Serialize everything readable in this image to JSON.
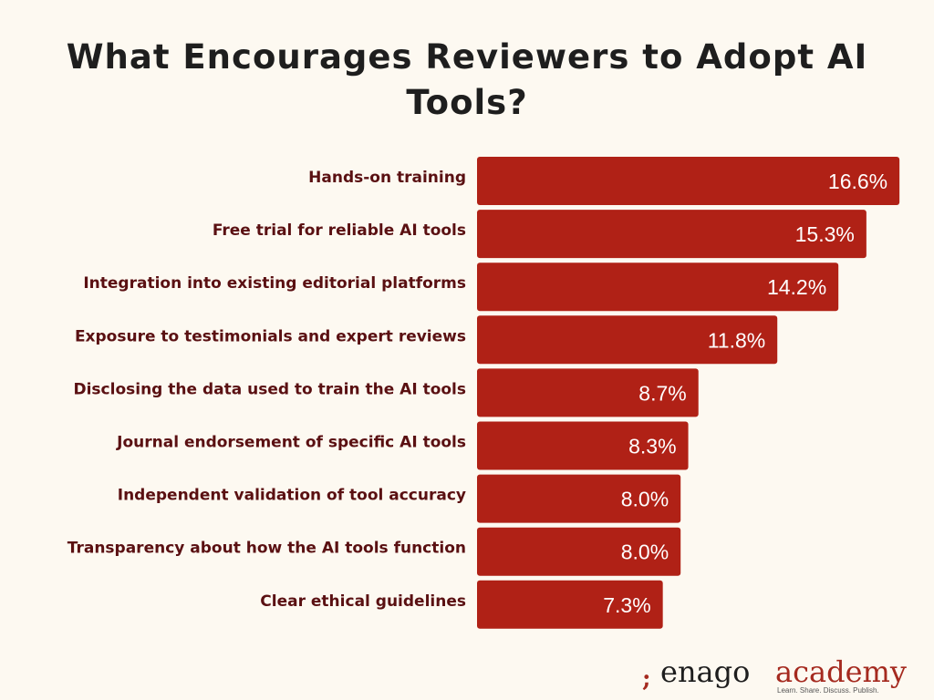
{
  "title": "What Encourages Reviewers to Adopt AI Tools?",
  "chart_data": {
    "type": "bar",
    "orientation": "horizontal",
    "title": "What Encourages Reviewers to Adopt AI Tools?",
    "categories": [
      "Hands-on training",
      "Free trial for reliable AI tools",
      "Integration into existing editorial platforms",
      "Exposure to testimonials and expert reviews",
      "Disclosing the data used to train the AI tools",
      "Journal endorsement of specific AI tools",
      "Independent validation of tool accuracy",
      "Transparency about how the AI tools function",
      "Clear ethical guidelines"
    ],
    "values": [
      16.6,
      15.3,
      14.2,
      11.8,
      8.7,
      8.3,
      8.0,
      8.0,
      7.3
    ],
    "value_labels": [
      "16.6%",
      "15.3%",
      "14.2%",
      "11.8%",
      "8.7%",
      "8.3%",
      "8.0%",
      "8.0%",
      "7.3%"
    ],
    "xlabel": "",
    "ylabel": "",
    "grid": false,
    "legend": "none",
    "bar_color": "#b02116"
  },
  "branding": {
    "mark": ";",
    "enago": "enago",
    "academy": "academy",
    "tagline": "Learn. Share. Discuss. Publish."
  }
}
